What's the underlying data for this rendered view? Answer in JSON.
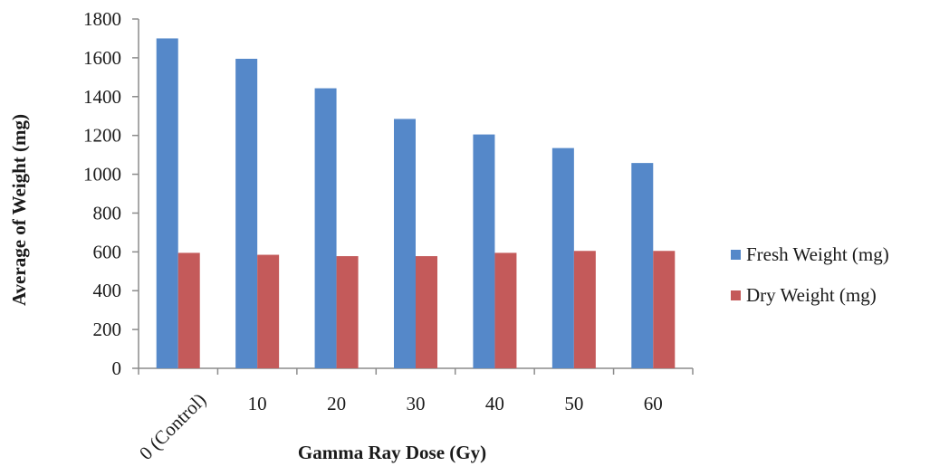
{
  "chart_data": {
    "type": "bar",
    "title": "",
    "xlabel": "Gamma Ray Dose (Gy)",
    "ylabel": "Average of Weight (mg)",
    "categories": [
      "0 (Control)",
      "10",
      "20",
      "30",
      "40",
      "50",
      "60"
    ],
    "series": [
      {
        "name": "Fresh Weight (mg)",
        "color": "#5588c9",
        "values": [
          1700,
          1595,
          1443,
          1285,
          1205,
          1135,
          1058
        ]
      },
      {
        "name": "Dry Weight (mg)",
        "color": "#c45a5a",
        "values": [
          595,
          585,
          578,
          578,
          595,
          605,
          605
        ]
      }
    ],
    "ylim": [
      0,
      1800
    ],
    "yticks": [
      "0",
      "200",
      "400",
      "600",
      "800",
      "1000",
      "1200",
      "1400",
      "1600",
      "1800"
    ],
    "grid": false,
    "legend": "right"
  }
}
